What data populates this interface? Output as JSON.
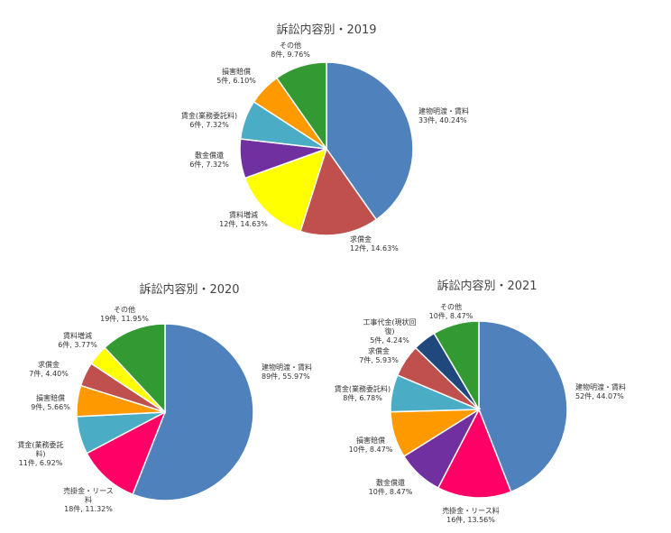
{
  "chart_data": [
    {
      "type": "pie",
      "title": "訴訟内容別・2019",
      "slices": [
        {
          "label": "建物明渡・賃料",
          "value": 33,
          "value_text": "33件, 40.24%",
          "color": "#4f81bd"
        },
        {
          "label": "求償金",
          "value": 12,
          "value_text": "12件, 14.63%",
          "color": "#c0504d"
        },
        {
          "label": "賃料増減",
          "value": 12,
          "value_text": "12件, 14.63%",
          "color": "#ffff00"
        },
        {
          "label": "敷金償還",
          "value": 6,
          "value_text": "6件, 7.32%",
          "color": "#7030a0"
        },
        {
          "label": "賃金(業務委託料)",
          "value": 6,
          "value_text": "6件, 7.32%",
          "color": "#4bacc6"
        },
        {
          "label": "損害賠償",
          "value": 5,
          "value_text": "5件, 6.10%",
          "color": "#ff9900"
        },
        {
          "label": "その他",
          "value": 8,
          "value_text": "8件, 9.76%",
          "color": "#339933"
        }
      ]
    },
    {
      "type": "pie",
      "title": "訴訟内容別・2020",
      "slices": [
        {
          "label": "建物明渡・賃料",
          "value": 89,
          "value_text": "89件, 55.97%",
          "color": "#4f81bd"
        },
        {
          "label": "売掛金・リース料",
          "value": 18,
          "value_text": "18件, 11.32%",
          "color": "#ff0066"
        },
        {
          "label": "賃金(業務委託料)",
          "value": 11,
          "value_text": "11件, 6.92%",
          "color": "#4bacc6"
        },
        {
          "label": "損害賠償",
          "value": 9,
          "value_text": "9件, 5.66%",
          "color": "#ff9900"
        },
        {
          "label": "求償金",
          "value": 7,
          "value_text": "7件, 4.40%",
          "color": "#c0504d"
        },
        {
          "label": "賃料増減",
          "value": 6,
          "value_text": "6件, 3.77%",
          "color": "#ffff00"
        },
        {
          "label": "その他",
          "value": 19,
          "value_text": "19件, 11.95%",
          "color": "#339933"
        }
      ]
    },
    {
      "type": "pie",
      "title": "訴訟内容別・2021",
      "slices": [
        {
          "label": "建物明渡・賃料",
          "value": 52,
          "value_text": "52件, 44.07%",
          "color": "#4f81bd"
        },
        {
          "label": "売掛金・リース料",
          "value": 16,
          "value_text": "16件, 13.56%",
          "color": "#ff0066"
        },
        {
          "label": "敷金償還",
          "value": 10,
          "value_text": "10件, 8.47%",
          "color": "#7030a0"
        },
        {
          "label": "損害賠償",
          "value": 10,
          "value_text": "10件, 8.47%",
          "color": "#ff9900"
        },
        {
          "label": "賃金(業務委託料)",
          "value": 8,
          "value_text": "8件, 6.78%",
          "color": "#4bacc6"
        },
        {
          "label": "求償金",
          "value": 7,
          "value_text": "7件, 5.93%",
          "color": "#c0504d"
        },
        {
          "label": "工事代金(現状回復)",
          "value": 5,
          "value_text": "5件, 4.24%",
          "color": "#1f497d"
        },
        {
          "label": "その他",
          "value": 10,
          "value_text": "10件, 8.47%",
          "color": "#339933"
        }
      ]
    }
  ]
}
